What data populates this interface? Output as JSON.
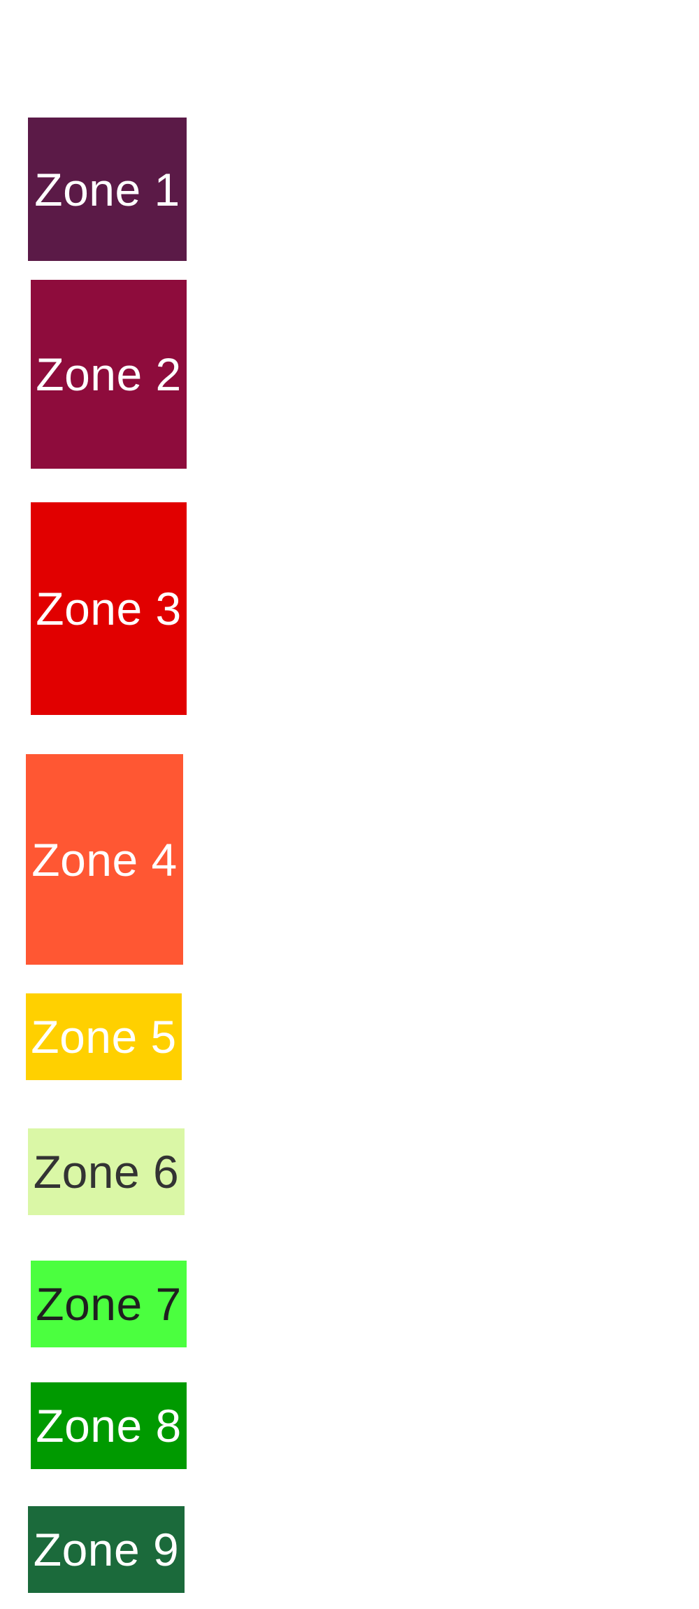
{
  "zones": [
    {
      "label": "Zone 1",
      "color": "#5b1a47",
      "text_color": "#ffffff"
    },
    {
      "label": "Zone 2",
      "color": "#8e0c3c",
      "text_color": "#ffffff"
    },
    {
      "label": "Zone 3",
      "color": "#e10000",
      "text_color": "#ffffff"
    },
    {
      "label": "Zone 4",
      "color": "#ff5733",
      "text_color": "#ffffff"
    },
    {
      "label": "Zone 5",
      "color": "#ffd000",
      "text_color": "#ffffff"
    },
    {
      "label": "Zone 6",
      "color": "#daf7a6",
      "text_color": "#333333"
    },
    {
      "label": "Zone 7",
      "color": "#4bff3f",
      "text_color": "#1f1f1f"
    },
    {
      "label": "Zone 8",
      "color": "#009a00",
      "text_color": "#ffffff"
    },
    {
      "label": "Zone 9",
      "color": "#1b6a3b",
      "text_color": "#ffffff"
    }
  ]
}
